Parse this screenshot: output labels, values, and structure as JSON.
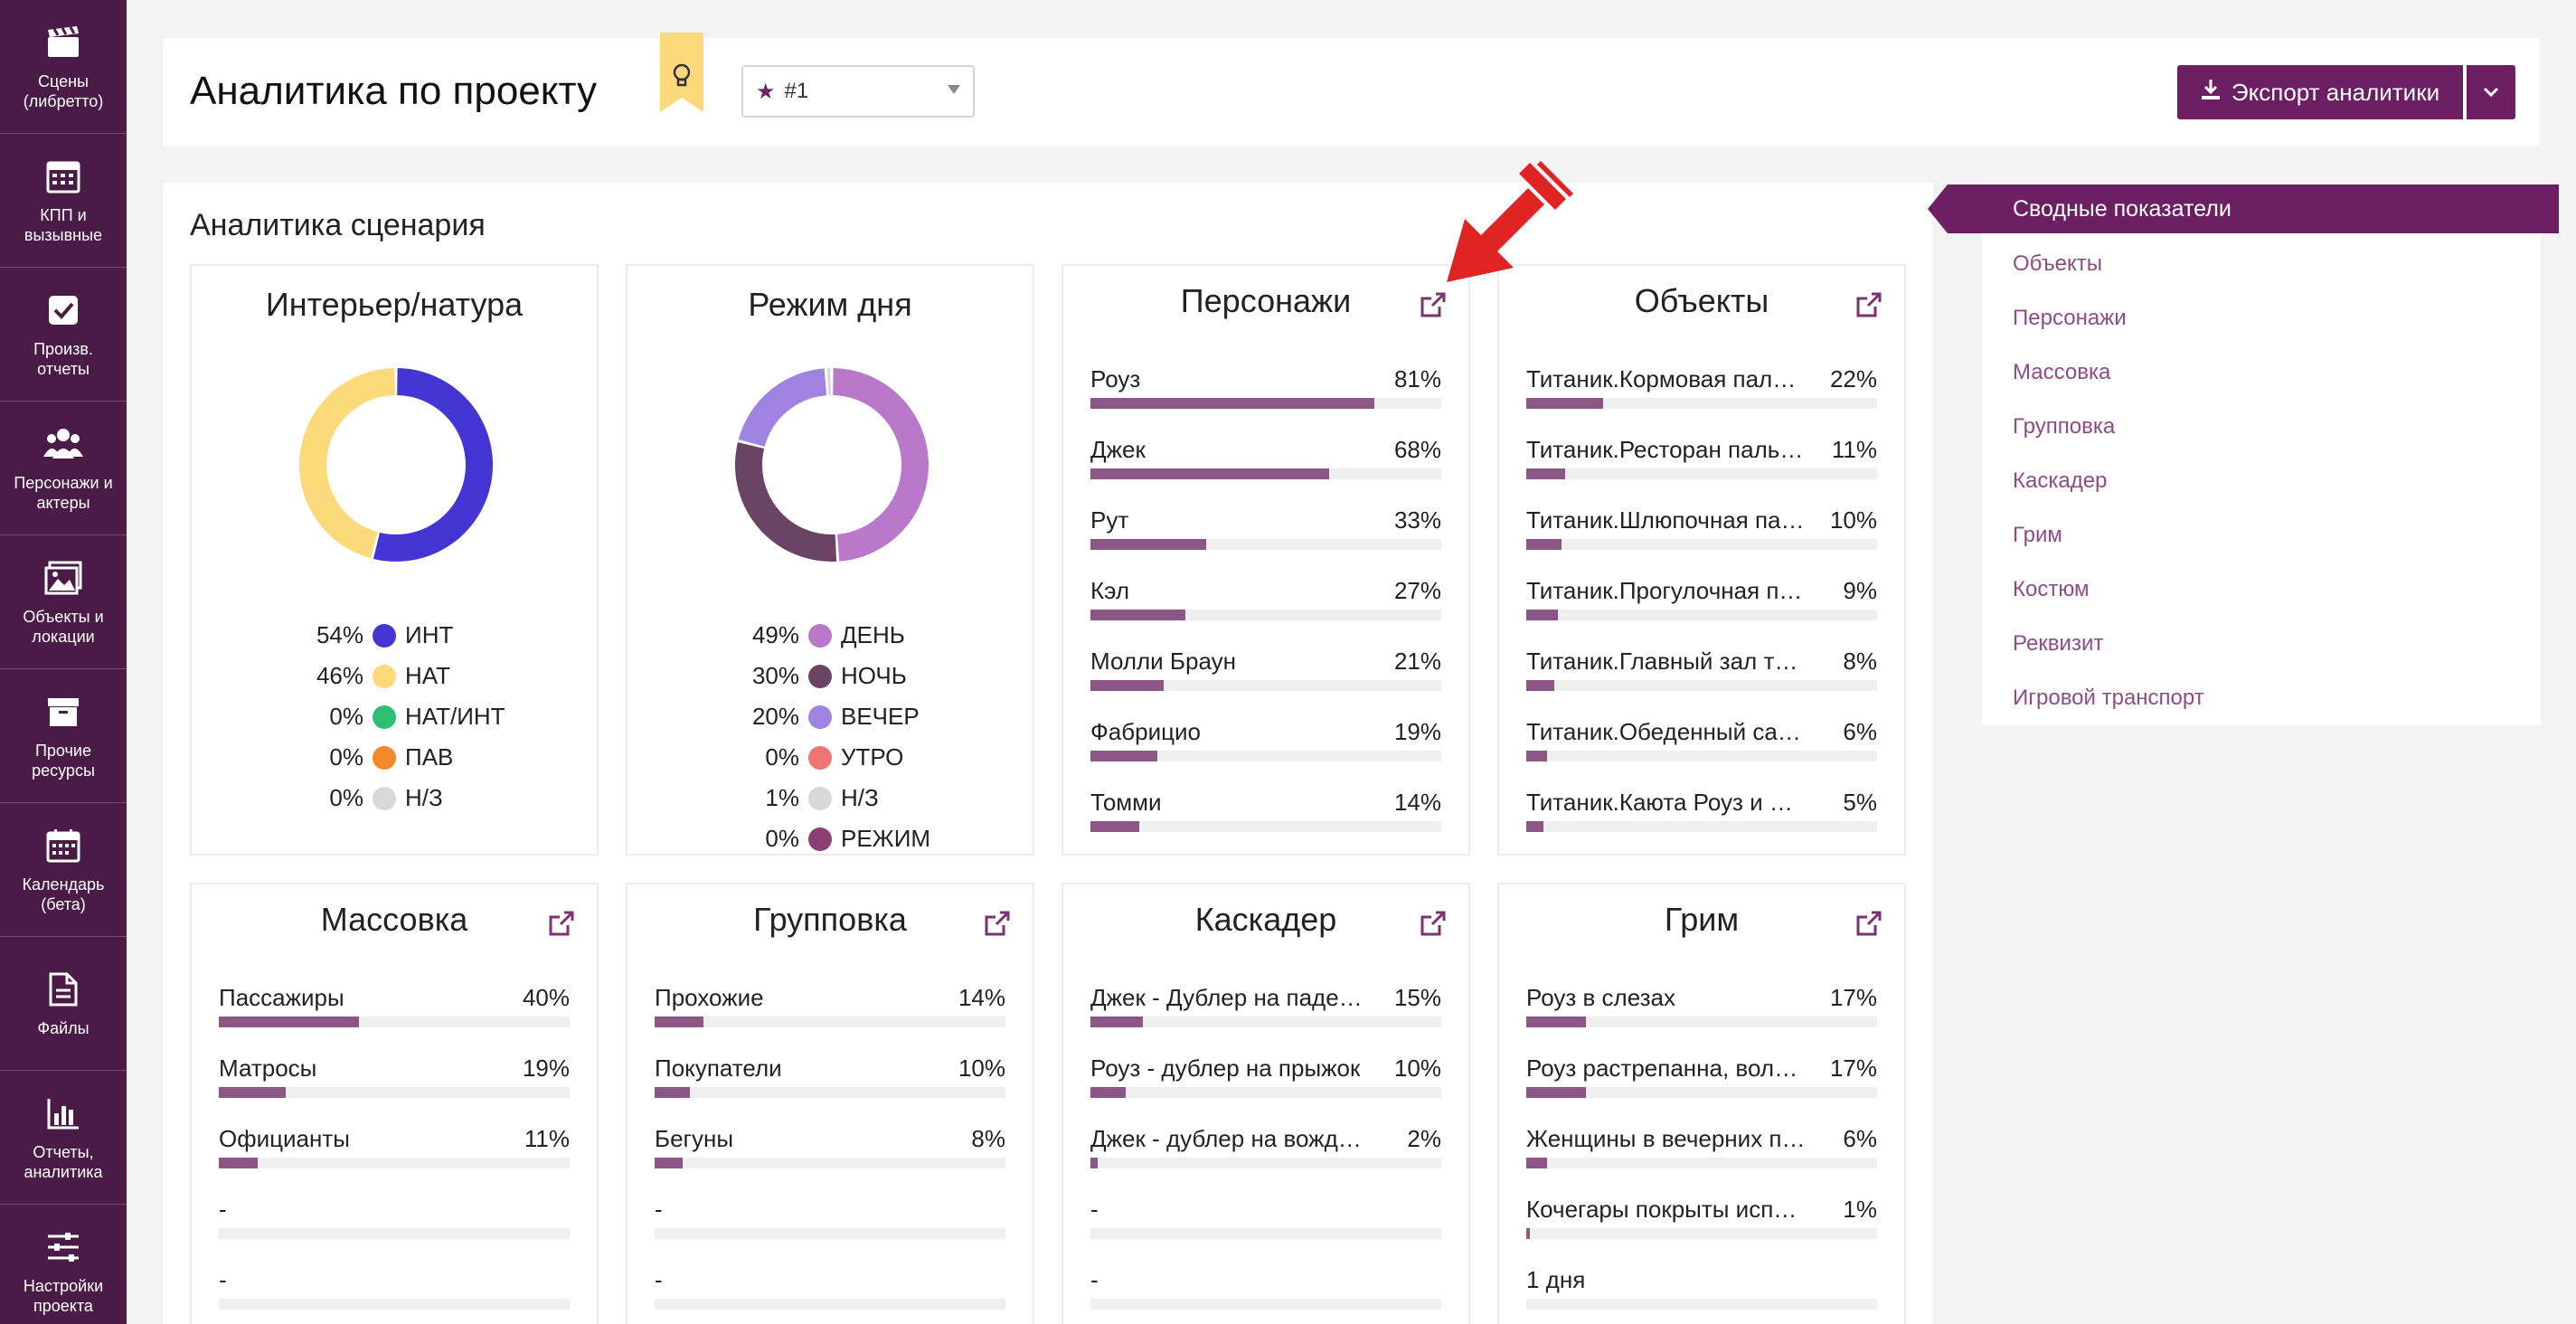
{
  "sidebar": [
    {
      "label": "Сцены (либретто)",
      "icon": "clapperboard-icon"
    },
    {
      "label": "КПП и вызывные",
      "icon": "calendar-grid-icon"
    },
    {
      "label": "Произв. отчеты",
      "icon": "checkbox-icon"
    },
    {
      "label": "Персонажи и актеры",
      "icon": "people-icon"
    },
    {
      "label": "Объекты и локации",
      "icon": "image-icon"
    },
    {
      "label": "Прочие ресурсы",
      "icon": "archive-box-icon"
    },
    {
      "label": "Календарь (бета)",
      "icon": "calendar-icon"
    },
    {
      "label": "Файлы",
      "icon": "file-icon"
    },
    {
      "label": "Отчеты, аналитика",
      "icon": "bar-chart-icon"
    },
    {
      "label": "Настройки проекта",
      "icon": "sliders-icon"
    }
  ],
  "header": {
    "title": "Аналитика по проекту",
    "project_value": "#1",
    "export_label": "Экспорт аналитики"
  },
  "main": {
    "section_title": "Аналитика сценария",
    "donuts": [
      {
        "title": "Интерьер/натура",
        "legend": [
          {
            "pct": "54%",
            "label": "ИНТ",
            "value": 54,
            "color": "#4335d4"
          },
          {
            "pct": "46%",
            "label": "НАТ",
            "value": 46,
            "color": "#fcd97a"
          },
          {
            "pct": "0%",
            "label": "НАТ/ИНТ",
            "value": 0,
            "color": "#2fbf74"
          },
          {
            "pct": "0%",
            "label": "ПАВ",
            "value": 0,
            "color": "#f5892a"
          },
          {
            "pct": "0%",
            "label": "Н/З",
            "value": 0,
            "color": "#d8d8d8"
          }
        ]
      },
      {
        "title": "Режим дня",
        "legend": [
          {
            "pct": "49%",
            "label": "ДЕНЬ",
            "value": 49,
            "color": "#b978c9"
          },
          {
            "pct": "30%",
            "label": "НОЧЬ",
            "value": 30,
            "color": "#6b4365"
          },
          {
            "pct": "20%",
            "label": "ВЕЧЕР",
            "value": 20,
            "color": "#9f83e3"
          },
          {
            "pct": "0%",
            "label": "УТРО",
            "value": 0,
            "color": "#f07474"
          },
          {
            "pct": "1%",
            "label": "Н/З",
            "value": 1,
            "color": "#d8d8d8"
          },
          {
            "pct": "0%",
            "label": "РЕЖИМ",
            "value": 0,
            "color": "#8c3f74"
          }
        ]
      }
    ],
    "bar_cards": [
      {
        "title": "Персонажи",
        "rows": [
          {
            "name": "Роуз",
            "pct": "81%",
            "value": 81
          },
          {
            "name": "Джек",
            "pct": "68%",
            "value": 68
          },
          {
            "name": "Рут",
            "pct": "33%",
            "value": 33
          },
          {
            "name": "Кэл",
            "pct": "27%",
            "value": 27
          },
          {
            "name": "Молли Браун",
            "pct": "21%",
            "value": 21
          },
          {
            "name": "Фабрицио",
            "pct": "19%",
            "value": 19
          },
          {
            "name": "Томми",
            "pct": "14%",
            "value": 14
          }
        ]
      },
      {
        "title": "Объекты",
        "rows": [
          {
            "name": "Титаник.Кормовая палу…",
            "pct": "22%",
            "value": 22
          },
          {
            "name": "Титаник.Ресторан паль…",
            "pct": "11%",
            "value": 11
          },
          {
            "name": "Титаник.Шлюпочная па…",
            "pct": "10%",
            "value": 10
          },
          {
            "name": "Титаник.Прогулочная п…",
            "pct": "9%",
            "value": 9
          },
          {
            "name": "Титаник.Главный зал т…",
            "pct": "8%",
            "value": 8
          },
          {
            "name": "Титаник.Обеденный са…",
            "pct": "6%",
            "value": 6
          },
          {
            "name": "Титаник.Каюта Роуз и К…",
            "pct": "5%",
            "value": 5
          }
        ]
      },
      {
        "title": "Массовка",
        "rows": [
          {
            "name": "Пассажиры",
            "pct": "40%",
            "value": 40
          },
          {
            "name": "Матросы",
            "pct": "19%",
            "value": 19
          },
          {
            "name": "Официанты",
            "pct": "11%",
            "value": 11
          },
          {
            "name": "-",
            "pct": "",
            "value": 0
          },
          {
            "name": "-",
            "pct": "",
            "value": 0
          }
        ]
      },
      {
        "title": "Групповка",
        "rows": [
          {
            "name": "Прохожие",
            "pct": "14%",
            "value": 14
          },
          {
            "name": "Покупатели",
            "pct": "10%",
            "value": 10
          },
          {
            "name": "Бегуны",
            "pct": "8%",
            "value": 8
          },
          {
            "name": "-",
            "pct": "",
            "value": 0
          },
          {
            "name": "-",
            "pct": "",
            "value": 0
          }
        ]
      },
      {
        "title": "Каскадер",
        "rows": [
          {
            "name": "Джек - Дублер на паден…",
            "pct": "15%",
            "value": 15
          },
          {
            "name": "Роуз - дублер на прыжок",
            "pct": "10%",
            "value": 10
          },
          {
            "name": "Джек - дублер на вожд…",
            "pct": "2%",
            "value": 2
          },
          {
            "name": "-",
            "pct": "",
            "value": 0
          },
          {
            "name": "-",
            "pct": "",
            "value": 0
          }
        ]
      },
      {
        "title": "Грим",
        "rows": [
          {
            "name": "Роуз в слезах",
            "pct": "17%",
            "value": 17
          },
          {
            "name": "Роуз растрепанна, воло…",
            "pct": "17%",
            "value": 17
          },
          {
            "name": "Женщины в вечерних п…",
            "pct": "6%",
            "value": 6
          },
          {
            "name": "Кочегары покрыты исп…",
            "pct": "1%",
            "value": 1
          },
          {
            "name": "1 дня",
            "pct": "",
            "value": 0
          }
        ]
      }
    ]
  },
  "right_menu": {
    "active": "Сводные показатели",
    "items": [
      "Объекты",
      "Персонажи",
      "Массовка",
      "Групповка",
      "Каскадер",
      "Грим",
      "Костюм",
      "Реквизит",
      "Игровой транспорт"
    ]
  },
  "colors": {
    "accent": "#6c1f63",
    "sidebar": "#4a1b46",
    "bar": "#8c5685"
  }
}
